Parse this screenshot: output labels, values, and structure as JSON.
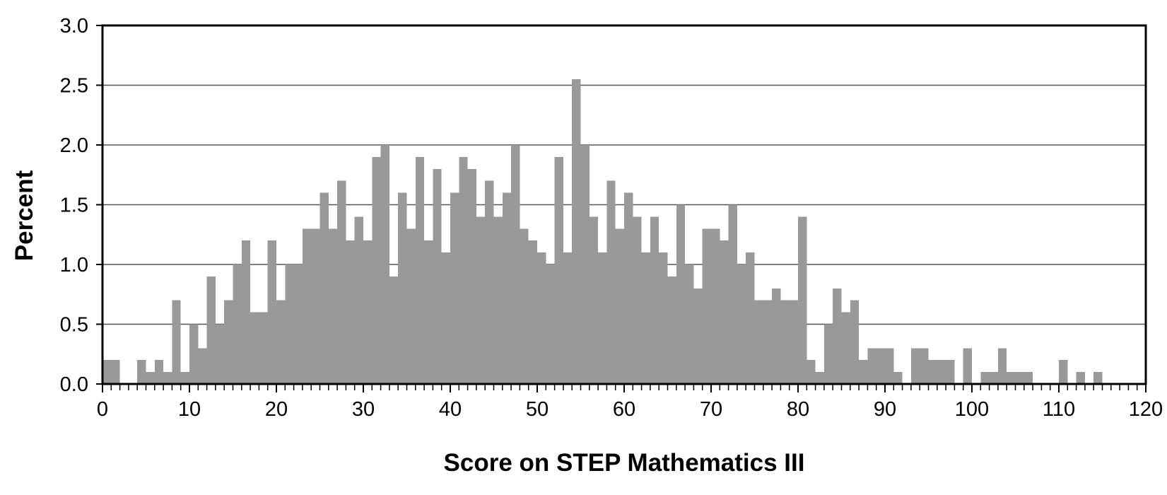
{
  "chart_data": {
    "type": "bar",
    "title": "",
    "xlabel": "Score on STEP Mathematics III",
    "ylabel": "Percent",
    "xlim": [
      0,
      120
    ],
    "ylim": [
      0,
      3.0
    ],
    "x_ticks": [
      0,
      10,
      20,
      30,
      40,
      50,
      60,
      70,
      80,
      90,
      100,
      110,
      120
    ],
    "x_tick_labels": [
      "0",
      "10",
      "20",
      "30",
      "40",
      "50",
      "60",
      "70",
      "80",
      "90",
      "100",
      "110",
      "120"
    ],
    "y_ticks": [
      0,
      0.5,
      1.0,
      1.5,
      2.0,
      2.5,
      3.0
    ],
    "y_tick_labels": [
      "0.0",
      "0.5",
      "1.0",
      "1.5",
      "2.0",
      "2.5",
      "3.0"
    ],
    "grid": "horizontal",
    "legend": "none",
    "bar_color": "#999999",
    "categories": [
      0,
      1,
      2,
      3,
      4,
      5,
      6,
      7,
      8,
      9,
      10,
      11,
      12,
      13,
      14,
      15,
      16,
      17,
      18,
      19,
      20,
      21,
      22,
      23,
      24,
      25,
      26,
      27,
      28,
      29,
      30,
      31,
      32,
      33,
      34,
      35,
      36,
      37,
      38,
      39,
      40,
      41,
      42,
      43,
      44,
      45,
      46,
      47,
      48,
      49,
      50,
      51,
      52,
      53,
      54,
      55,
      56,
      57,
      58,
      59,
      60,
      61,
      62,
      63,
      64,
      65,
      66,
      67,
      68,
      69,
      70,
      71,
      72,
      73,
      74,
      75,
      76,
      77,
      78,
      79,
      80,
      81,
      82,
      83,
      84,
      85,
      86,
      87,
      88,
      89,
      90,
      91,
      92,
      93,
      94,
      95,
      96,
      97,
      98,
      99,
      100,
      101,
      102,
      103,
      104,
      105,
      106,
      107,
      108,
      109,
      110,
      111,
      112,
      113,
      114,
      115,
      116,
      117,
      118,
      119
    ],
    "values": [
      0.2,
      0.2,
      0.0,
      0.0,
      0.2,
      0.1,
      0.2,
      0.1,
      0.7,
      0.1,
      0.5,
      0.3,
      0.9,
      0.5,
      0.7,
      1.0,
      1.2,
      0.6,
      0.6,
      1.2,
      0.7,
      1.0,
      1.0,
      1.3,
      1.3,
      1.6,
      1.3,
      1.7,
      1.2,
      1.4,
      1.2,
      1.9,
      2.0,
      0.9,
      1.6,
      1.3,
      1.9,
      1.2,
      1.8,
      1.1,
      1.6,
      1.9,
      1.8,
      1.4,
      1.7,
      1.4,
      1.6,
      2.0,
      1.3,
      1.2,
      1.1,
      1.0,
      1.9,
      1.1,
      2.55,
      2.0,
      1.4,
      1.1,
      1.7,
      1.3,
      1.6,
      1.4,
      1.1,
      1.4,
      1.1,
      0.9,
      1.5,
      1.0,
      0.8,
      1.3,
      1.3,
      1.2,
      1.5,
      1.0,
      1.1,
      0.7,
      0.7,
      0.8,
      0.7,
      0.7,
      1.4,
      0.2,
      0.1,
      0.5,
      0.8,
      0.6,
      0.7,
      0.2,
      0.3,
      0.3,
      0.3,
      0.1,
      0.0,
      0.3,
      0.3,
      0.2,
      0.2,
      0.2,
      0.0,
      0.3,
      0.0,
      0.1,
      0.1,
      0.3,
      0.1,
      0.1,
      0.1,
      0.0,
      0.0,
      0.0,
      0.2,
      0.0,
      0.1,
      0.0,
      0.1,
      0.0,
      0.0,
      0.0,
      0.0,
      0.0
    ]
  }
}
